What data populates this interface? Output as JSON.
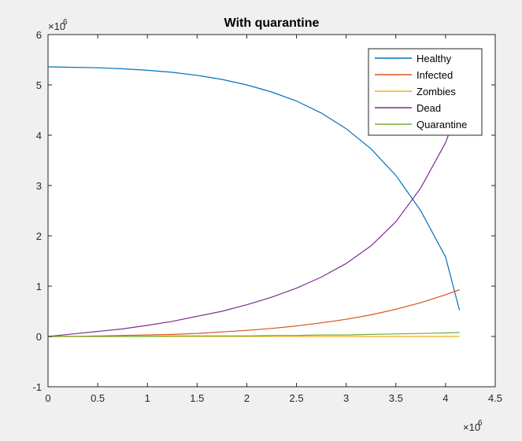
{
  "chart_data": {
    "type": "line",
    "title": "With quarantine",
    "xlabel": "",
    "ylabel": "",
    "xlim": [
      0,
      4.5
    ],
    "ylim": [
      -1,
      6
    ],
    "x_exponent_label": "×10",
    "x_exponent_power": "6",
    "y_exponent_label": "×10",
    "y_exponent_power": "6",
    "xticks": [
      0,
      0.5,
      1,
      1.5,
      2,
      2.5,
      3,
      3.5,
      4,
      4.5
    ],
    "xtick_labels": [
      "0",
      "0.5",
      "1",
      "1.5",
      "2",
      "2.5",
      "3",
      "3.5",
      "4",
      "4.5"
    ],
    "yticks": [
      -1,
      0,
      1,
      2,
      3,
      4,
      5,
      6
    ],
    "ytick_labels": [
      "-1",
      "0",
      "1",
      "2",
      "3",
      "4",
      "5",
      "6"
    ],
    "grid": false,
    "legend_position": "top-right",
    "x": [
      0,
      0.25,
      0.5,
      0.75,
      1.0,
      1.25,
      1.5,
      1.75,
      2.0,
      2.25,
      2.5,
      2.75,
      3.0,
      3.25,
      3.5,
      3.75,
      4.0,
      4.14
    ],
    "series": [
      {
        "name": "Healthy",
        "color": "#0072bd",
        "values": [
          5.36,
          5.35,
          5.34,
          5.32,
          5.29,
          5.25,
          5.19,
          5.11,
          5.0,
          4.86,
          4.68,
          4.44,
          4.13,
          3.73,
          3.2,
          2.5,
          1.58,
          0.52
        ]
      },
      {
        "name": "Infected",
        "color": "#d95319",
        "values": [
          0.0,
          0.0,
          0.01,
          0.02,
          0.03,
          0.04,
          0.06,
          0.09,
          0.12,
          0.16,
          0.21,
          0.27,
          0.34,
          0.43,
          0.54,
          0.67,
          0.83,
          0.93
        ]
      },
      {
        "name": "Zombies",
        "color": "#edb120",
        "values": [
          0.0,
          0.0,
          0.0,
          0.0,
          0.0,
          0.0,
          0.0,
          0.0,
          0.0,
          0.0,
          0.0,
          0.0,
          0.0,
          0.0,
          0.0,
          0.0,
          0.0,
          0.0
        ]
      },
      {
        "name": "Dead",
        "color": "#7e2f8e",
        "values": [
          0.0,
          0.05,
          0.1,
          0.15,
          0.22,
          0.3,
          0.4,
          0.5,
          0.63,
          0.78,
          0.96,
          1.18,
          1.45,
          1.8,
          2.28,
          2.95,
          3.85,
          4.6
        ]
      },
      {
        "name": "Quarantine",
        "color": "#77ac30",
        "values": [
          0.0,
          0.0,
          0.0,
          0.0,
          0.0,
          0.01,
          0.01,
          0.01,
          0.01,
          0.02,
          0.02,
          0.03,
          0.03,
          0.04,
          0.05,
          0.06,
          0.07,
          0.08
        ]
      }
    ]
  }
}
